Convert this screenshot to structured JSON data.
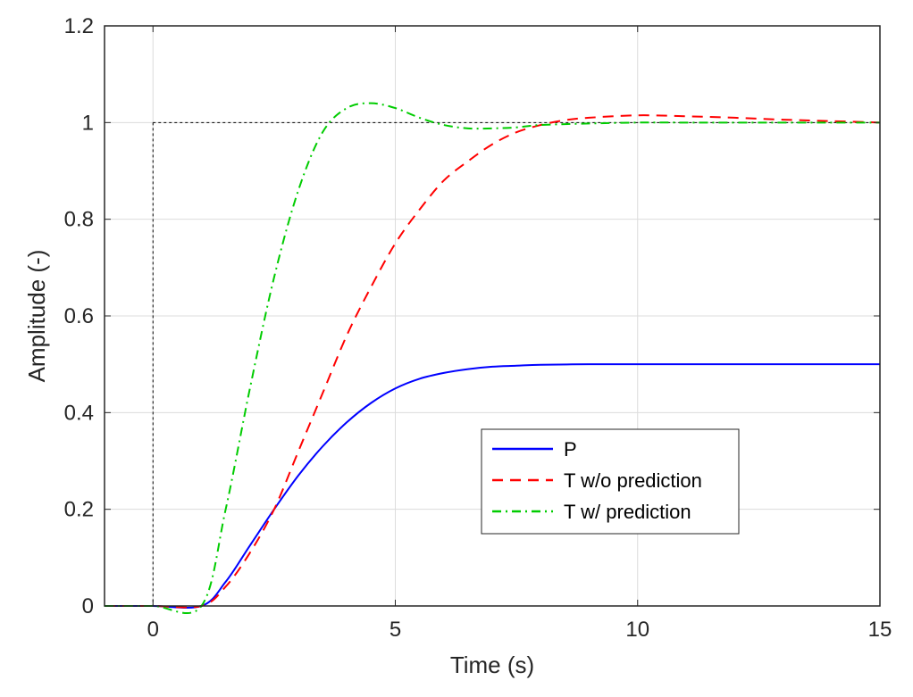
{
  "chart_data": {
    "type": "line",
    "title": "",
    "xlabel": "Time (s)",
    "ylabel": "Amplitude (-)",
    "xlim": [
      -1,
      15
    ],
    "ylim": [
      0,
      1.2
    ],
    "xticks": [
      0,
      5,
      10,
      15
    ],
    "xtick_labels": [
      "0",
      "5",
      "10",
      "15"
    ],
    "yticks": [
      0,
      0.2,
      0.4,
      0.6,
      0.8,
      1,
      1.2
    ],
    "ytick_labels": [
      "0",
      "0.2",
      "0.4",
      "0.6",
      "0.8",
      "1",
      "1.2"
    ],
    "grid": true,
    "legend_position": "lower-right",
    "reference_lines": [
      {
        "type": "horizontal",
        "y": 1,
        "style": "dotted",
        "color": "#000000"
      },
      {
        "type": "vertical",
        "x": 0,
        "style": "dotted",
        "color": "#000000"
      }
    ],
    "series": [
      {
        "name": "P",
        "color": "#0000FF",
        "style": "solid",
        "x": [
          -1,
          0,
          1,
          1.5,
          2,
          2.5,
          3,
          3.5,
          4,
          4.5,
          5,
          5.5,
          6,
          6.5,
          7,
          7.5,
          8,
          9,
          10,
          11,
          12,
          13,
          14,
          15
        ],
        "y": [
          0,
          0,
          0,
          0.05,
          0.125,
          0.2,
          0.27,
          0.33,
          0.38,
          0.42,
          0.45,
          0.47,
          0.482,
          0.49,
          0.495,
          0.497,
          0.499,
          0.5,
          0.5,
          0.5,
          0.5,
          0.5,
          0.5,
          0.5
        ]
      },
      {
        "name": "T w/o prediction",
        "color": "#FF0000",
        "style": "dashed",
        "x": [
          -1,
          0,
          1,
          1.5,
          2,
          2.5,
          3,
          3.5,
          4,
          4.5,
          5,
          5.5,
          6,
          6.5,
          7,
          7.5,
          8,
          8.5,
          9,
          10,
          11,
          12,
          13,
          14,
          15
        ],
        "y": [
          0,
          0,
          0,
          0.04,
          0.11,
          0.2,
          0.32,
          0.44,
          0.56,
          0.66,
          0.75,
          0.82,
          0.88,
          0.92,
          0.955,
          0.98,
          0.995,
          1.005,
          1.01,
          1.015,
          1.013,
          1.01,
          1.006,
          1.003,
          1.0
        ]
      },
      {
        "name": "T w/ prediction",
        "color": "#00CC00",
        "style": "dashdot",
        "x": [
          -1,
          0,
          1,
          1.5,
          2,
          2.5,
          3,
          3.5,
          4,
          4.5,
          5,
          5.5,
          6,
          6.5,
          7,
          7.5,
          8,
          9,
          10,
          11,
          12,
          13,
          14,
          15
        ],
        "y": [
          0,
          0,
          0,
          0.2,
          0.45,
          0.68,
          0.86,
          0.98,
          1.03,
          1.04,
          1.03,
          1.01,
          0.995,
          0.988,
          0.988,
          0.99,
          0.995,
          0.998,
          1.0,
          1.0,
          1.0,
          1.0,
          1.0,
          1.0
        ]
      }
    ]
  }
}
